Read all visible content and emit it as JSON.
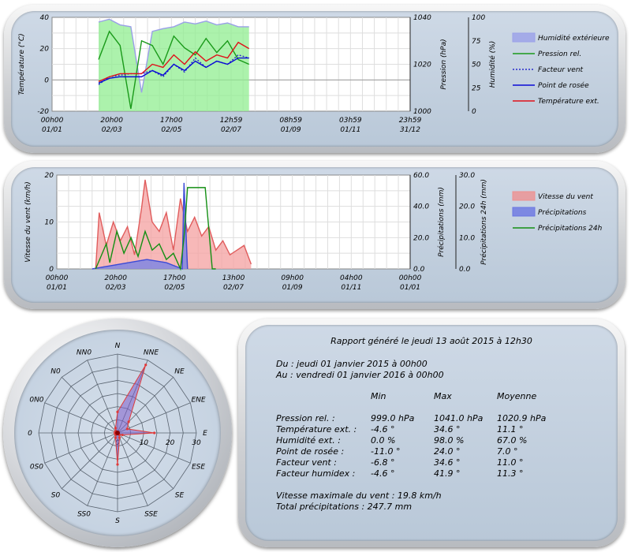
{
  "chart_data": [
    {
      "type": "line",
      "x_ticks": [
        [
          "00h00",
          "01/01"
        ],
        [
          "20h00",
          "02/03"
        ],
        [
          "17h00",
          "02/05"
        ],
        [
          "12h59",
          "02/07"
        ],
        [
          "08h59",
          "01/09"
        ],
        [
          "03h59",
          "01/11"
        ],
        [
          "23h59",
          "31/12"
        ]
      ],
      "ylabel": "Température (°C)",
      "y_ticks": [
        "-20",
        "0",
        "20",
        "40"
      ],
      "ylim": [
        -20,
        40
      ],
      "y2label": "Pression (hPa)",
      "y2_ticks": [
        "1000",
        "1020",
        "1040"
      ],
      "y2lim": [
        1000,
        1040
      ],
      "y3label": "Humidité (%)",
      "y3_ticks": [
        "0",
        "25",
        "50",
        "75",
        "100"
      ],
      "y3lim": [
        0,
        100
      ],
      "x": [
        0.13,
        0.16,
        0.19,
        0.22,
        0.25,
        0.28,
        0.31,
        0.34,
        0.37,
        0.4,
        0.43,
        0.46,
        0.49,
        0.52,
        0.55
      ],
      "series": [
        {
          "name": "Humidité extérieure",
          "axis": "y3",
          "color": "#9aa0e8",
          "fill": "#90ee90",
          "values": [
            95,
            98,
            92,
            90,
            20,
            85,
            88,
            90,
            95,
            93,
            96,
            92,
            94,
            90,
            90
          ]
        },
        {
          "name": "Pression rel.",
          "axis": "y2",
          "color": "#1a9a1a",
          "values": [
            1022,
            1034,
            1028,
            1001,
            1030,
            1028,
            1020,
            1032,
            1027,
            1024,
            1031,
            1025,
            1030,
            1022,
            1020
          ]
        },
        {
          "name": "Facteur vent",
          "axis": "y",
          "color": "#2a2acc",
          "dash": true,
          "values": [
            -3,
            2,
            3,
            4,
            4,
            6,
            2,
            10,
            5,
            14,
            8,
            12,
            10,
            16,
            14
          ]
        },
        {
          "name": "Point de rosée",
          "axis": "y",
          "color": "#0a0ad6",
          "values": [
            -2,
            1,
            2,
            2,
            2,
            6,
            3,
            10,
            6,
            12,
            8,
            12,
            10,
            14,
            14
          ]
        },
        {
          "name": "Température ext.",
          "axis": "y",
          "color": "#e0101a",
          "values": [
            -1,
            2,
            4,
            4,
            4,
            10,
            8,
            16,
            10,
            18,
            12,
            16,
            14,
            24,
            20
          ]
        }
      ]
    },
    {
      "type": "area",
      "x_ticks": [
        [
          "00h00",
          "01/01"
        ],
        [
          "20h00",
          "02/03"
        ],
        [
          "17h00",
          "02/05"
        ],
        [
          "13h00",
          "02/07"
        ],
        [
          "09h00",
          "01/09"
        ],
        [
          "04h00",
          "01/11"
        ],
        [
          "00h00",
          "01/01"
        ]
      ],
      "ylabel": "Vitesse du vent (km/h)",
      "y_ticks": [
        "0",
        "10",
        "20"
      ],
      "ylim": [
        0,
        20
      ],
      "y2label": "Précipitations (mm)",
      "y2_ticks": [
        "0.0",
        "20.0",
        "40.0",
        "60.0"
      ],
      "y2lim": [
        0,
        60
      ],
      "y3label": "Précipitations 24h (mm)",
      "y3_ticks": [
        "0.0",
        "10.0",
        "20.0",
        "30.0"
      ],
      "y3lim": [
        0,
        30
      ],
      "series": [
        {
          "name": "Vitesse du vent",
          "axis": "y",
          "color": "#e05c5c",
          "fill": "#f4a0a0",
          "x": [
            0.11,
            0.12,
            0.14,
            0.16,
            0.18,
            0.2,
            0.22,
            0.24,
            0.25,
            0.27,
            0.29,
            0.31,
            0.33,
            0.35,
            0.37,
            0.39,
            0.41,
            0.43,
            0.45,
            0.47,
            0.49,
            0.51,
            0.53,
            0.55
          ],
          "values": [
            0,
            12,
            5,
            10,
            6,
            9,
            3,
            13,
            19,
            10,
            8,
            12,
            4,
            15,
            8,
            11,
            7,
            9,
            4,
            6,
            3,
            4,
            5,
            1
          ]
        },
        {
          "name": "Précipitations",
          "axis": "y2",
          "color": "#3d4bd6",
          "fill": "#7080e8",
          "x": [
            0.1,
            0.255,
            0.31,
            0.355,
            0.36,
            0.37
          ],
          "values": [
            0,
            6,
            4,
            0,
            55,
            0
          ]
        },
        {
          "name": "Précipitations 24h",
          "axis": "y3",
          "color": "#138f13",
          "x": [
            0.11,
            0.14,
            0.15,
            0.17,
            0.19,
            0.21,
            0.23,
            0.25,
            0.27,
            0.29,
            0.31,
            0.33,
            0.35,
            0.36,
            0.37,
            0.42,
            0.44,
            0.45
          ],
          "values": [
            0,
            8,
            2,
            12,
            5,
            10,
            4,
            12,
            6,
            8,
            3,
            5,
            0,
            10,
            26,
            26,
            0,
            0
          ]
        }
      ]
    },
    {
      "type": "radar",
      "directions": [
        "N",
        "NNE",
        "NE",
        "ENE",
        "E",
        "ESE",
        "SE",
        "SSE",
        "S",
        "SS0",
        "S0",
        "0S0",
        "0",
        "0N0",
        "N0",
        "NN0"
      ],
      "r_ticks": [
        "10",
        "20",
        "30"
      ],
      "rlim": [
        0,
        30
      ],
      "values": [
        8,
        28,
        6,
        4,
        14,
        2,
        1,
        2,
        12,
        2,
        1,
        1,
        1,
        1,
        1,
        2
      ],
      "color": "#7b5bc8",
      "accent": "#e03a3a"
    }
  ],
  "legend": {
    "chart1": [
      {
        "label": "Humidité extérieure",
        "kind": "box",
        "color": "#9aa0e8"
      },
      {
        "label": "Pression rel.",
        "kind": "line",
        "color": "#1a9a1a"
      },
      {
        "label": "Facteur vent",
        "kind": "dash",
        "color": "#2a2acc"
      },
      {
        "label": "Point de rosée",
        "kind": "line",
        "color": "#0a0ad6"
      },
      {
        "label": "Température ext.",
        "kind": "line",
        "color": "#e0101a"
      }
    ],
    "chart2": [
      {
        "label": "Vitesse du vent",
        "kind": "box",
        "color": "#ee9090"
      },
      {
        "label": "Précipitations",
        "kind": "box",
        "color": "#6a76e2"
      },
      {
        "label": "Précipitations 24h",
        "kind": "line",
        "color": "#138f13"
      }
    ]
  },
  "report": {
    "title": "Rapport généré le jeudi 13 août 2015 à 12h30",
    "from": "Du : jeudi 01 janvier 2015 à 00h00",
    "to": "Au : vendredi 01 janvier 2016 à 00h00",
    "headers": [
      "Min",
      "Max",
      "Moyenne"
    ],
    "rows": [
      {
        "label": "Pression rel. :",
        "min": "999.0 hPa",
        "max": "1041.0 hPa",
        "avg": "1020.9 hPa"
      },
      {
        "label": "Température ext. :",
        "min": "-4.6 °",
        "max": "34.6 °",
        "avg": "11.1 °"
      },
      {
        "label": "Humidité ext. :",
        "min": "0.0 %",
        "max": "98.0 %",
        "avg": "67.0 %"
      },
      {
        "label": "Point de rosée :",
        "min": "-11.0 °",
        "max": "24.0 °",
        "avg": "7.0 °"
      },
      {
        "label": "Facteur vent :",
        "min": "-6.8 °",
        "max": "34.6 °",
        "avg": "11.0 °"
      },
      {
        "label": "Facteur humidex :",
        "min": "-4.6 °",
        "max": "41.9 °",
        "avg": "11.3 °"
      }
    ],
    "max_wind": "Vitesse maximale du vent : 19.8 km/h",
    "total_rain": "Total précipitations : 247.7 mm"
  }
}
